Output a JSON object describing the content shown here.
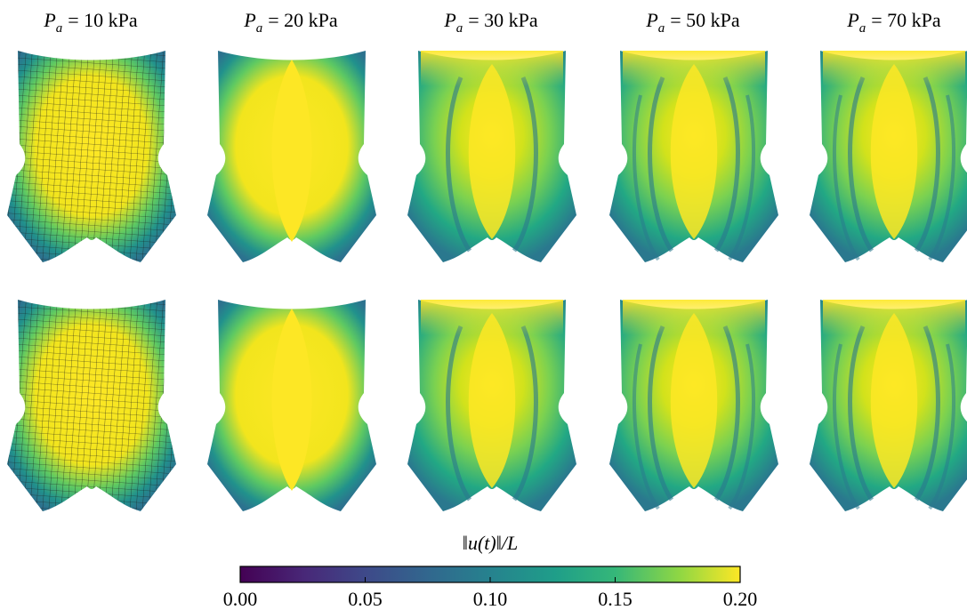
{
  "columns": [
    {
      "var": "P",
      "sub": "a",
      "text": "= 10 kPa"
    },
    {
      "var": "P",
      "sub": "a",
      "text": "= 20 kPa"
    },
    {
      "var": "P",
      "sub": "a",
      "text": "= 30 kPa"
    },
    {
      "var": "P",
      "sub": "a",
      "text": "= 50 kPa"
    },
    {
      "var": "P",
      "sub": "a",
      "text": "= 70 kPa"
    }
  ],
  "colorbar": {
    "label": "‖u(t)‖/L",
    "lim": [
      0,
      0.2
    ],
    "ticks": [
      {
        "value": 0,
        "label": "0.00"
      },
      {
        "value": 0.05,
        "label": "0.05"
      },
      {
        "value": 0.1,
        "label": "0.10"
      },
      {
        "value": 0.15,
        "label": "0.15"
      },
      {
        "value": 0.2,
        "label": "0.20"
      }
    ]
  }
}
